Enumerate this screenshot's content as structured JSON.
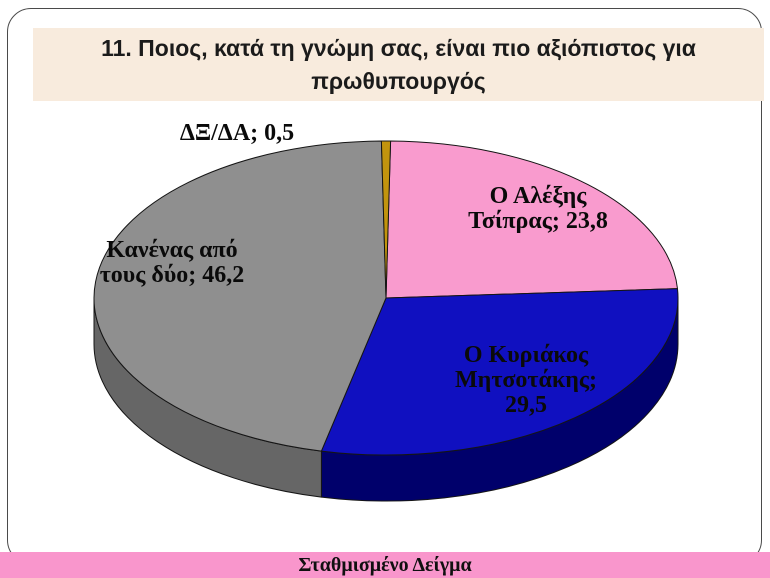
{
  "slide": {
    "title": "11. Ποιος, κατά τη γνώμη σας, είναι πιο αξιόπιστος για\nπρωθυπουργός",
    "footer": "Σταθμισμένο Δείγμα"
  },
  "colors": {
    "background": "#FFFFFF",
    "title_bg": "#F8EBDD",
    "footer_bg": "#F996CC",
    "frame_border": "#4A4A4A",
    "slice_outline": "#151515"
  },
  "chart_data": {
    "type": "pie",
    "three_d": true,
    "start_angle_deg": 0.9,
    "direction": "clockwise",
    "legend_position": "none",
    "title": "",
    "value_suffix": "",
    "points": [
      {
        "label": "Ο Αλέξης Τσίπρας",
        "value": 23.8,
        "display": "Ο Αλέξης\nΤσίπρας; 23,8",
        "color": "#F99BCE",
        "side_color": "#C26FA2"
      },
      {
        "label": "Ο Κυριάκος Μητσοτάκης",
        "value": 29.5,
        "display": "Ο Κυριάκος\nΜητσοτάκης;\n29,5",
        "color": "#1010C0",
        "side_color": "#00006B"
      },
      {
        "label": "Κανένας από τους δύο",
        "value": 46.2,
        "display": "Κανένας από\nτους δύο; 46,2",
        "color": "#8F8F8F",
        "side_color": "#666666"
      },
      {
        "label": "ΔΞ/ΔΑ",
        "value": 0.5,
        "display": "ΔΞ/ΔΑ; 0,5",
        "color": "#C2940E",
        "side_color": "#8A6800"
      }
    ]
  }
}
